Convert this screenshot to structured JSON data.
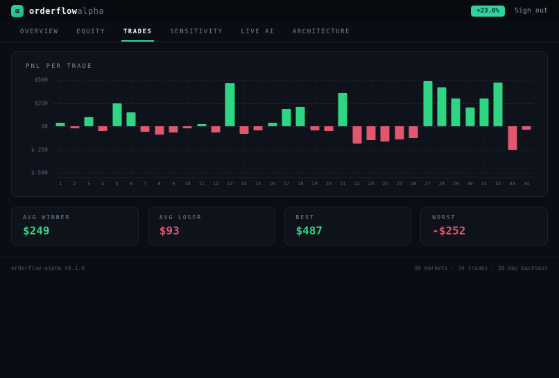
{
  "header": {
    "logo_glyph": "α",
    "brand_bold": "orderflow",
    "brand_light": "alpha",
    "performance_badge": "+23.0%",
    "sign_out_label": "Sign out"
  },
  "nav": {
    "tabs": [
      {
        "label": "OVERVIEW",
        "active": false
      },
      {
        "label": "EQUITY",
        "active": false
      },
      {
        "label": "TRADES",
        "active": true
      },
      {
        "label": "SENSITIVITY",
        "active": false
      },
      {
        "label": "LIVE AI",
        "active": false
      },
      {
        "label": "ARCHITECTURE",
        "active": false
      }
    ]
  },
  "chart_panel": {
    "title": "PNL PER TRADE"
  },
  "chart_data": {
    "type": "bar",
    "title": "PNL PER TRADE",
    "x": [
      1,
      2,
      3,
      4,
      5,
      6,
      7,
      8,
      9,
      10,
      11,
      12,
      13,
      14,
      15,
      16,
      17,
      18,
      19,
      20,
      21,
      22,
      23,
      24,
      25,
      26,
      27,
      28,
      29,
      30,
      31,
      32,
      33,
      34
    ],
    "values": [
      40,
      -25,
      100,
      -55,
      245,
      150,
      -60,
      -90,
      -70,
      -25,
      25,
      -70,
      460,
      -80,
      -45,
      40,
      185,
      210,
      -45,
      -55,
      360,
      -185,
      -150,
      -165,
      -140,
      -125,
      487,
      420,
      300,
      200,
      300,
      470,
      -252,
      -35
    ],
    "ylim": [
      -500,
      500
    ],
    "yticks": [
      {
        "label": "$500",
        "value": 500
      },
      {
        "label": "$250",
        "value": 250
      },
      {
        "label": "$0",
        "value": 0
      },
      {
        "label": "$-250",
        "value": -250
      },
      {
        "label": "$-500",
        "value": -500
      }
    ],
    "positive_color": "#2fd583",
    "negative_color": "#e2566e",
    "grid": "dashed-horizontal",
    "legend": "none"
  },
  "stats": [
    {
      "label": "AVG WINNER",
      "value": "$249",
      "color": "green"
    },
    {
      "label": "AVG LOSER",
      "value": "$93",
      "color": "red"
    },
    {
      "label": "BEST",
      "value": "$487",
      "color": "green"
    },
    {
      "label": "WORST",
      "value": "-$252",
      "color": "red"
    }
  ],
  "footer": {
    "left": "orderflow-alpha v0.1.0",
    "right": "30 markets · 34 trades · 30-day backtest"
  }
}
